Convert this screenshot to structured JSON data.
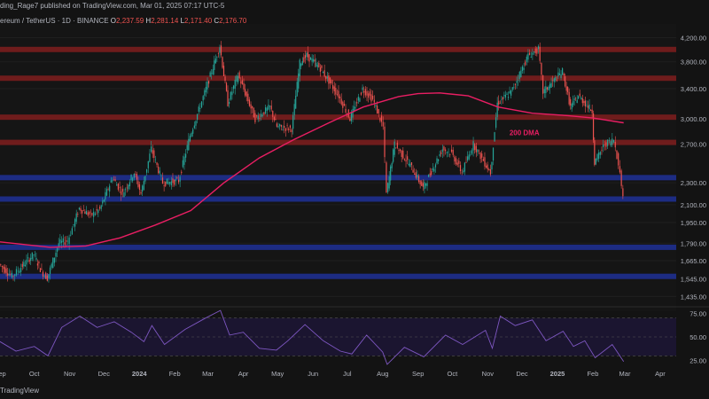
{
  "header": {
    "publisher": "ding_Rage7 published on TradingView.com, Mar 01, 2025 07:17 UTC-5"
  },
  "legend": {
    "symbol": "ereum / TetherUS · 1D · BINANCE",
    "o_label": "O",
    "o_value": "2,237.59",
    "h_label": "H",
    "h_value": "2,281.14",
    "l_label": "L",
    "l_value": "2,171.40",
    "c_label": "C",
    "c_value": "2,176.70"
  },
  "footer": {
    "brand": "TradingView"
  },
  "colors": {
    "background": "#131313",
    "up": "#26a69a",
    "down": "#ef5350",
    "ma": "#e91e63",
    "resistance": "#7f1d1d",
    "support": "#1e2f8f",
    "rsi": "#7e57c2"
  },
  "chart_data": [
    {
      "type": "candlestick",
      "symbol": "ETH/USDT",
      "timeframe": "1D",
      "y_scale": "log",
      "ylim": [
        1380,
        4350
      ],
      "price_ticks": [
        "4,200.00",
        "3,800.00",
        "3,400.00",
        "3,000.00",
        "2,700.00",
        "2,300.00",
        "2,100.00",
        "1,950.00",
        "1,790.00",
        "1,665.00",
        "1,545.00",
        "1,435.00"
      ],
      "x_ticks": [
        "Sep",
        "Oct",
        "Nov",
        "Dec",
        "2024",
        "Feb",
        "Mar",
        "Apr",
        "May",
        "Jun",
        "Jul",
        "Aug",
        "Sep",
        "Oct",
        "Nov",
        "Dec",
        "2025",
        "Feb",
        "Mar",
        "Apr"
      ],
      "x_range": [
        "2023-09-01",
        "2025-04-15"
      ],
      "path": [
        [
          "2023-09-01",
          1640
        ],
        [
          "2023-09-12",
          1560
        ],
        [
          "2023-09-20",
          1620
        ],
        [
          "2023-10-01",
          1710
        ],
        [
          "2023-10-08",
          1590
        ],
        [
          "2023-10-13",
          1550
        ],
        [
          "2023-10-23",
          1790
        ],
        [
          "2023-10-31",
          1810
        ],
        [
          "2023-11-10",
          2070
        ],
        [
          "2023-11-20",
          2010
        ],
        [
          "2023-11-28",
          2060
        ],
        [
          "2023-12-09",
          2350
        ],
        [
          "2023-12-18",
          2200
        ],
        [
          "2023-12-28",
          2400
        ],
        [
          "2024-01-03",
          2200
        ],
        [
          "2024-01-12",
          2650
        ],
        [
          "2024-01-22",
          2300
        ],
        [
          "2024-02-05",
          2320
        ],
        [
          "2024-02-15",
          2800
        ],
        [
          "2024-02-29",
          3400
        ],
        [
          "2024-03-12",
          4060
        ],
        [
          "2024-03-19",
          3200
        ],
        [
          "2024-03-28",
          3600
        ],
        [
          "2024-04-12",
          3000
        ],
        [
          "2024-04-25",
          3150
        ],
        [
          "2024-05-01",
          2900
        ],
        [
          "2024-05-14",
          2880
        ],
        [
          "2024-05-21",
          3780
        ],
        [
          "2024-05-27",
          3900
        ],
        [
          "2024-06-08",
          3700
        ],
        [
          "2024-06-24",
          3300
        ],
        [
          "2024-07-04",
          3000
        ],
        [
          "2024-07-15",
          3400
        ],
        [
          "2024-07-24",
          3250
        ],
        [
          "2024-08-02",
          2900
        ],
        [
          "2024-08-05",
          2200
        ],
        [
          "2024-08-12",
          2700
        ],
        [
          "2024-08-27",
          2450
        ],
        [
          "2024-09-06",
          2250
        ],
        [
          "2024-09-23",
          2650
        ],
        [
          "2024-10-01",
          2600
        ],
        [
          "2024-10-10",
          2400
        ],
        [
          "2024-10-20",
          2700
        ],
        [
          "2024-11-04",
          2400
        ],
        [
          "2024-11-10",
          3200
        ],
        [
          "2024-11-22",
          3350
        ],
        [
          "2024-12-07",
          3900
        ],
        [
          "2024-12-16",
          4000
        ],
        [
          "2024-12-20",
          3350
        ],
        [
          "2025-01-06",
          3650
        ],
        [
          "2025-01-13",
          3150
        ],
        [
          "2025-01-20",
          3300
        ],
        [
          "2025-02-01",
          3100
        ],
        [
          "2025-02-03",
          2500
        ],
        [
          "2025-02-12",
          2700
        ],
        [
          "2025-02-20",
          2750
        ],
        [
          "2025-02-24",
          2500
        ],
        [
          "2025-02-28",
          2180
        ]
      ],
      "series": [
        {
          "name": "200 DMA",
          "points": [
            [
              "2023-09-01",
              1800
            ],
            [
              "2023-10-15",
              1760
            ],
            [
              "2023-11-15",
              1770
            ],
            [
              "2023-12-15",
              1830
            ],
            [
              "2024-01-15",
              1930
            ],
            [
              "2024-02-15",
              2050
            ],
            [
              "2024-03-15",
              2300
            ],
            [
              "2024-04-15",
              2550
            ],
            [
              "2024-05-15",
              2750
            ],
            [
              "2024-06-15",
              2950
            ],
            [
              "2024-07-15",
              3150
            ],
            [
              "2024-08-15",
              3290
            ],
            [
              "2024-09-01",
              3330
            ],
            [
              "2024-09-20",
              3340
            ],
            [
              "2024-10-15",
              3300
            ],
            [
              "2024-11-10",
              3150
            ],
            [
              "2024-12-10",
              3070
            ],
            [
              "2025-01-10",
              3040
            ],
            [
              "2025-02-01",
              3010
            ],
            [
              "2025-02-28",
              2950
            ]
          ]
        }
      ],
      "levels": {
        "resistance": [
          4000,
          3550,
          3020,
          2720
        ],
        "support": [
          2350,
          2150,
          1760,
          1560
        ]
      },
      "annotations": [
        {
          "text": "200 DMA",
          "date": "2024-11-20",
          "price": 2800
        }
      ]
    },
    {
      "type": "line",
      "name": "RSI",
      "ylim": [
        20,
        80
      ],
      "ticks": [
        "75.00",
        "50.00",
        "25.00"
      ],
      "band": [
        30,
        70
      ],
      "points": [
        [
          "2023-09-01",
          45
        ],
        [
          "2023-09-15",
          35
        ],
        [
          "2023-10-01",
          40
        ],
        [
          "2023-10-13",
          30
        ],
        [
          "2023-10-25",
          60
        ],
        [
          "2023-11-10",
          72
        ],
        [
          "2023-11-25",
          60
        ],
        [
          "2023-12-10",
          66
        ],
        [
          "2023-12-25",
          55
        ],
        [
          "2024-01-05",
          45
        ],
        [
          "2024-01-12",
          62
        ],
        [
          "2024-01-23",
          42
        ],
        [
          "2024-02-10",
          58
        ],
        [
          "2024-02-28",
          70
        ],
        [
          "2024-03-12",
          78
        ],
        [
          "2024-03-20",
          52
        ],
        [
          "2024-04-01",
          55
        ],
        [
          "2024-04-15",
          38
        ],
        [
          "2024-04-30",
          36
        ],
        [
          "2024-05-10",
          46
        ],
        [
          "2024-05-25",
          63
        ],
        [
          "2024-06-10",
          46
        ],
        [
          "2024-06-25",
          35
        ],
        [
          "2024-07-05",
          32
        ],
        [
          "2024-07-18",
          52
        ],
        [
          "2024-08-01",
          34
        ],
        [
          "2024-08-05",
          21
        ],
        [
          "2024-08-20",
          39
        ],
        [
          "2024-09-06",
          29
        ],
        [
          "2024-09-25",
          52
        ],
        [
          "2024-10-10",
          42
        ],
        [
          "2024-10-30",
          57
        ],
        [
          "2024-11-05",
          38
        ],
        [
          "2024-11-12",
          72
        ],
        [
          "2024-11-25",
          62
        ],
        [
          "2024-12-10",
          68
        ],
        [
          "2024-12-22",
          46
        ],
        [
          "2025-01-06",
          56
        ],
        [
          "2025-01-15",
          40
        ],
        [
          "2025-01-25",
          46
        ],
        [
          "2025-02-03",
          28
        ],
        [
          "2025-02-18",
          42
        ],
        [
          "2025-02-28",
          24
        ]
      ]
    }
  ]
}
